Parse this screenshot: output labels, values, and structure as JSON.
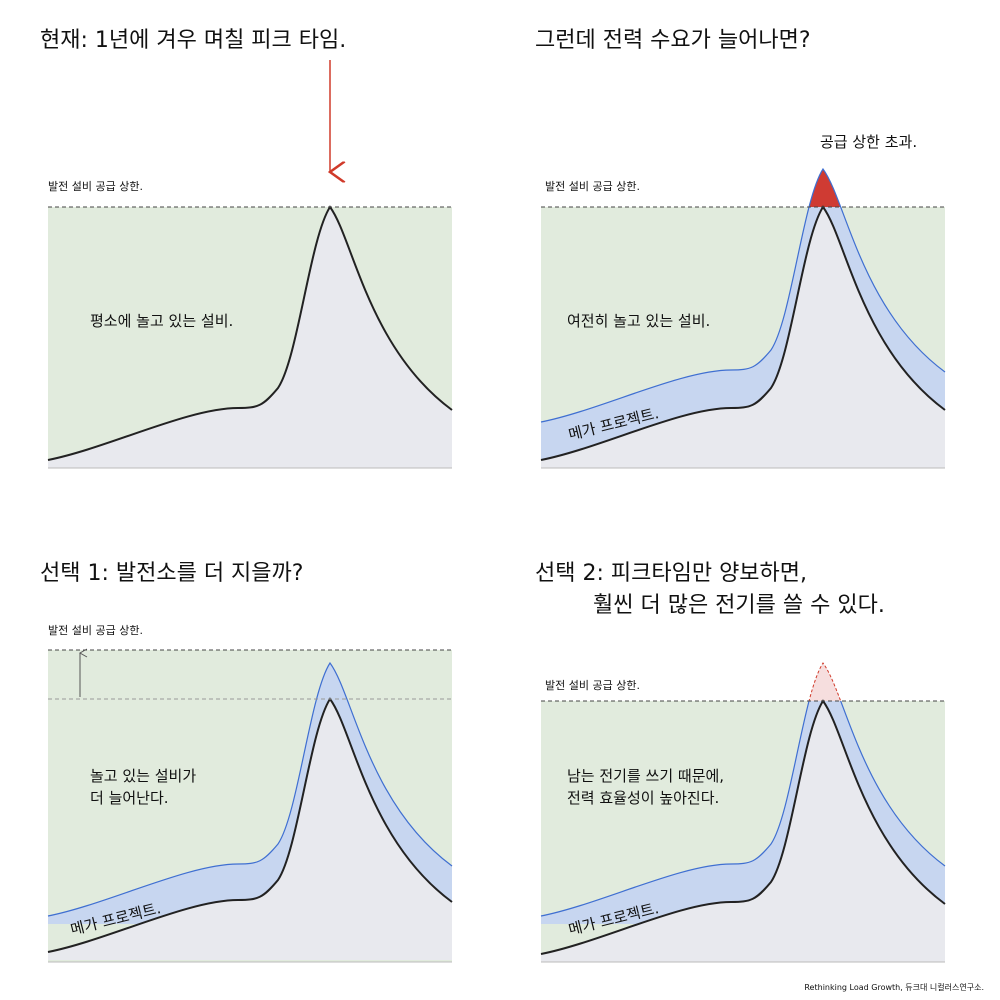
{
  "panels": [
    {
      "title": [
        "현재: 1년에 겨우 며칠 피크 타임."
      ],
      "cap_label": "발전 설비 공급 상한.",
      "area_label": [
        "평소에 놀고 있는 설비."
      ]
    },
    {
      "title": [
        "그런데 전력 수요가 늘어나면?"
      ],
      "cap_label": "발전 설비 공급 상한.",
      "area_label": [
        "여전히 놀고 있는 설비."
      ],
      "band_label": "메가 프로젝트.",
      "peak_label": "공급 상한 초과."
    },
    {
      "title": [
        "선택 1: 발전소를 더 지을까?"
      ],
      "cap_label": "발전 설비 공급 상한.",
      "area_label": [
        "놀고 있는 설비가",
        "더 늘어난다."
      ],
      "band_label": "메가 프로젝트."
    },
    {
      "title": [
        "선택 2: 피크타임만 양보하면,",
        "훨씬 더 많은 전기를 쓸 수 있다."
      ],
      "cap_label": "발전 설비 공급 상한.",
      "area_label": [
        "남는 전기를 쓰기 때문에,",
        "전력 효율성이 높아진다."
      ],
      "band_label": "메가 프로젝트."
    }
  ],
  "credit": "Rethinking Load Growth, 듀크대 니컬러스연구소."
}
